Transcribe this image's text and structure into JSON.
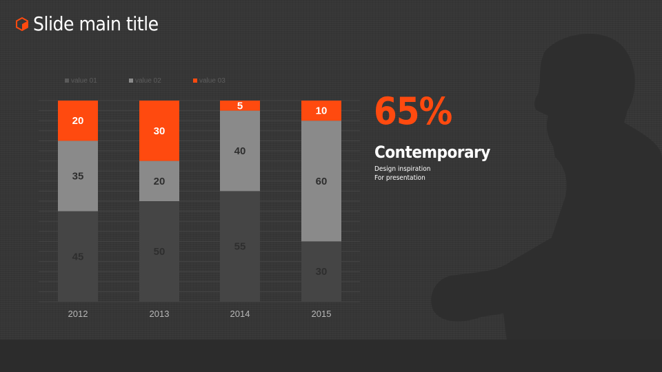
{
  "slide": {
    "title": "Slide main title",
    "accent_color": "#ff4a0f"
  },
  "highlight": {
    "value": "65%",
    "headline": "Contemporary",
    "line1": "Design inspiration",
    "line2": "For presentation"
  },
  "chart_data": {
    "type": "bar",
    "stacked": true,
    "categories": [
      "2012",
      "2013",
      "2014",
      "2015"
    ],
    "series": [
      {
        "name": "value 01",
        "values": [
          45,
          50,
          55,
          30
        ],
        "color": "#454545"
      },
      {
        "name": "value 02",
        "values": [
          35,
          20,
          40,
          60
        ],
        "color": "#8a8a8a"
      },
      {
        "name": "value 03",
        "values": [
          20,
          30,
          5,
          10
        ],
        "color": "#ff4a0f"
      }
    ],
    "ylim": [
      0,
      100
    ],
    "legend_position": "top-left",
    "grid": true,
    "data_labels": true
  }
}
